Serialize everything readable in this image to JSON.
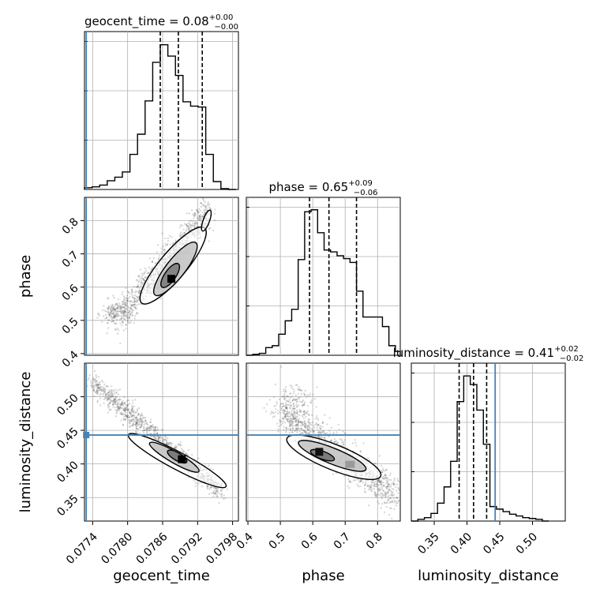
{
  "chart_data": {
    "type": "corner",
    "parameters": [
      {
        "key": "geocent_time",
        "label": "geocent_time",
        "title": "geocent_time = 0.08",
        "sup": "+0.00",
        "sub": "−0.00",
        "range": [
          0.07726,
          0.0799
        ],
        "ticks": [
          0.0774,
          0.078,
          0.0786,
          0.0792,
          0.0798
        ],
        "tick_labels": [
          "0.0774",
          "0.0780",
          "0.0786",
          "0.0792",
          "0.0798"
        ],
        "quantiles": [
          0.07856,
          0.07887,
          0.07928
        ],
        "injection": 0.07729
      },
      {
        "key": "phase",
        "label": "phase",
        "title": "phase = 0.65",
        "sup": "+0.09",
        "sub": "−0.06",
        "range": [
          0.395,
          0.87
        ],
        "ticks": [
          0.4,
          0.5,
          0.6,
          0.7,
          0.8
        ],
        "tick_labels": [
          "0.4",
          "0.5",
          "0.6",
          "0.7",
          "0.8"
        ],
        "quantiles": [
          0.59,
          0.65,
          0.735
        ],
        "injection": null
      },
      {
        "key": "luminosity_distance",
        "label": "luminosity_distance",
        "title": "luminosity_distance = 0.41",
        "sup": "+0.02",
        "sub": "−0.02",
        "range": [
          0.315,
          0.55
        ],
        "ticks": [
          0.35,
          0.4,
          0.45,
          0.5
        ],
        "tick_labels": [
          "0.35",
          "0.40",
          "0.45",
          "0.50"
        ],
        "quantiles": [
          0.388,
          0.41,
          0.43
        ],
        "injection": 0.443
      }
    ],
    "histograms": {
      "geocent_time": {
        "edges": [
          0.07726,
          0.07739,
          0.07752,
          0.07765,
          0.07778,
          0.07791,
          0.07804,
          0.07817,
          0.0783,
          0.07843,
          0.07856,
          0.07869,
          0.07882,
          0.07895,
          0.07908,
          0.07921,
          0.07934,
          0.07947,
          0.0796,
          0.07973,
          0.07986
        ],
        "counts": [
          2,
          3,
          5,
          10,
          14,
          20,
          40,
          63,
          101,
          145,
          165,
          152,
          130,
          100,
          95,
          94,
          40,
          9,
          1,
          0
        ],
        "ymax": 180
      },
      "phase": {
        "edges": [
          0.395,
          0.415,
          0.435,
          0.455,
          0.475,
          0.495,
          0.515,
          0.535,
          0.555,
          0.575,
          0.595,
          0.615,
          0.635,
          0.655,
          0.675,
          0.695,
          0.715,
          0.735,
          0.755,
          0.775,
          0.795,
          0.815,
          0.835,
          0.855,
          0.87
        ],
        "counts": [
          0,
          1,
          2,
          8,
          10,
          22,
          36,
          48,
          100,
          150,
          152,
          128,
          110,
          108,
          104,
          101,
          97,
          67,
          40,
          40,
          40,
          30,
          10,
          4
        ],
        "ymax": 165
      },
      "luminosity_distance": {
        "edges": [
          0.315,
          0.325,
          0.335,
          0.345,
          0.355,
          0.365,
          0.375,
          0.385,
          0.395,
          0.405,
          0.415,
          0.425,
          0.435,
          0.445,
          0.455,
          0.465,
          0.475,
          0.485,
          0.495,
          0.505,
          0.515,
          0.525
        ],
        "counts": [
          0,
          2,
          4,
          9,
          21,
          40,
          70,
          140,
          170,
          160,
          130,
          90,
          17,
          14,
          11,
          8,
          6,
          4,
          3,
          2,
          0
        ],
        "ymax": 185
      }
    },
    "grid": true,
    "colors": {
      "hist": "#000000",
      "injection": "#4682b4",
      "points": "#555555",
      "contour_fill": "#7f7f7f"
    }
  }
}
